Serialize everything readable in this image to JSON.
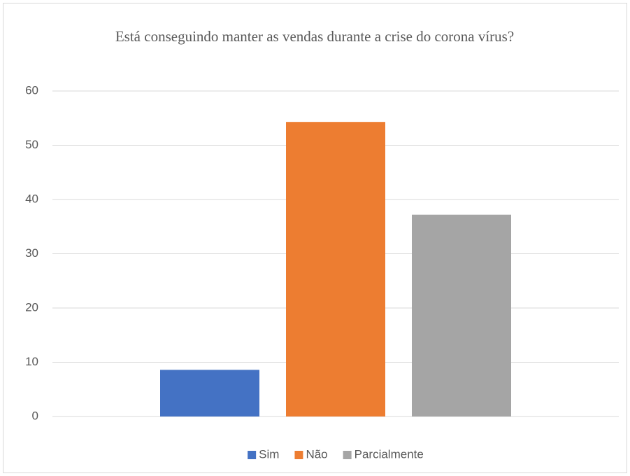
{
  "chart_data": {
    "type": "bar",
    "title": "Está conseguindo manter as vendas durante a crise do corona vírus?",
    "categories": [
      null
    ],
    "series": [
      {
        "name": "Sim",
        "color": "#4472c4",
        "values": [
          8.6
        ]
      },
      {
        "name": "Não",
        "color": "#ed7d31",
        "values": [
          54.3
        ]
      },
      {
        "name": "Parcialmente",
        "color": "#a5a5a5",
        "values": [
          37.2
        ]
      }
    ],
    "ylim": [
      0,
      60
    ],
    "yticks": [
      0,
      10,
      20,
      30,
      40,
      50,
      60
    ],
    "grid": true,
    "legend": "bottom"
  }
}
